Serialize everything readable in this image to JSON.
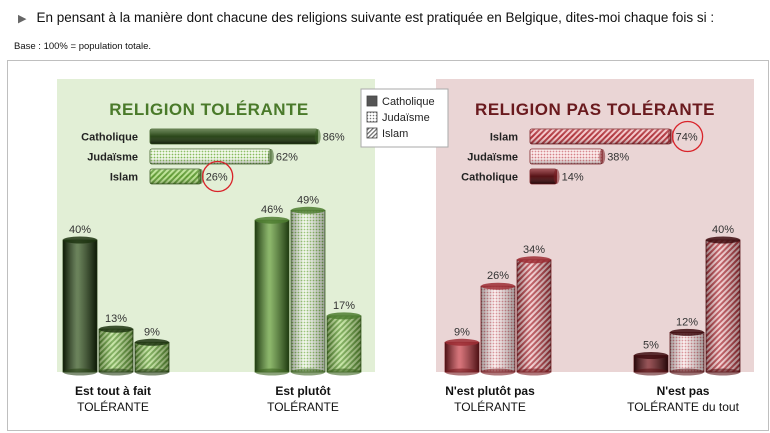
{
  "header": {
    "question": "En pensant à la manière dont chacune des religions suivante est pratiquée en Belgique, dites-moi chaque fois si :",
    "base": "Base : 100% = population totale."
  },
  "legend": {
    "items": [
      {
        "name": "Catholique",
        "pattern": "solid"
      },
      {
        "name": "Judaïsme",
        "pattern": "dots"
      },
      {
        "name": "Islam",
        "pattern": "stripes"
      }
    ]
  },
  "colors": {
    "green_dark": "#2d4a1b",
    "green_mid": "#4f8a2c",
    "green_light": "#9bcf6a",
    "green_panel": "#e2efd6",
    "red_dark": "#5a1418",
    "red_mid": "#b5343c",
    "red_light": "#e9a4a8",
    "red_panel": "#ead5d5",
    "highlight_circle": "#d9232a"
  },
  "chart_data": [
    {
      "type": "bar",
      "orientation": "horizontal",
      "title": "RELIGION TOLÉRANTE",
      "categories": [
        "Catholique",
        "Judaïsme",
        "Islam"
      ],
      "values": [
        86,
        62,
        26
      ],
      "value_labels": [
        "86%",
        "62%",
        "26%"
      ],
      "highlight": "Islam",
      "xlim": [
        0,
        100
      ]
    },
    {
      "type": "bar",
      "orientation": "horizontal",
      "title": "RELIGION PAS TOLÉRANTE",
      "categories": [
        "Islam",
        "Judaïsme",
        "Catholique"
      ],
      "values": [
        74,
        38,
        14
      ],
      "value_labels": [
        "74%",
        "38%",
        "14%"
      ],
      "highlight": "Islam",
      "xlim": [
        0,
        100
      ]
    },
    {
      "type": "bar",
      "orientation": "vertical",
      "categories": [
        {
          "line1": "Est tout à fait",
          "line2": "TOLÉRANTE"
        },
        {
          "line1": "Est plutôt",
          "line2": "TOLÉRANTE"
        },
        {
          "line1": "N'est plutôt pas",
          "line2": "TOLÉRANTE"
        },
        {
          "line1": "N'est pas",
          "line2": "TOLÉRANTE du tout"
        }
      ],
      "series": [
        {
          "name": "Catholique",
          "values": [
            40,
            46,
            9,
            5
          ],
          "labels": [
            "40%",
            "46%",
            "9%",
            "5%"
          ]
        },
        {
          "name": "Judaïsme",
          "values": [
            13,
            49,
            26,
            12
          ],
          "labels": [
            "13%",
            "49%",
            "26%",
            "12%"
          ]
        },
        {
          "name": "Islam",
          "values": [
            9,
            17,
            34,
            40
          ],
          "labels": [
            "9%",
            "17%",
            "34%",
            "40%"
          ]
        }
      ],
      "ylim": [
        0,
        50
      ]
    }
  ]
}
